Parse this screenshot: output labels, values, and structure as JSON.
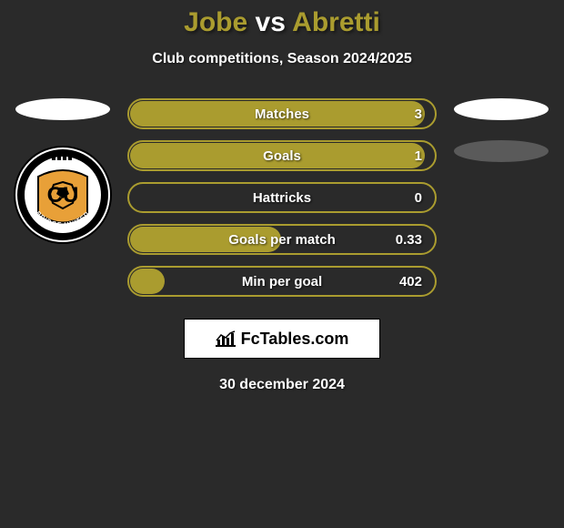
{
  "colors": {
    "accent": "#aa9c2f",
    "bar_fill": "#aa9c2f",
    "bar_border": "#aa9c2f",
    "bg": "#2a2a2a",
    "ellipse_right_2": "#5a5a5a"
  },
  "header": {
    "player1": "Jobe",
    "vs": "vs",
    "player2": "Abretti",
    "subtitle": "Club competitions, Season 2024/2025"
  },
  "stats": [
    {
      "label": "Matches",
      "value": "3",
      "fill_pct": 97
    },
    {
      "label": "Goals",
      "value": "1",
      "fill_pct": 97
    },
    {
      "label": "Hattricks",
      "value": "0",
      "fill_pct": 0
    },
    {
      "label": "Goals per match",
      "value": "0.33",
      "fill_pct": 50
    },
    {
      "label": "Min per goal",
      "value": "402",
      "fill_pct": 12
    }
  ],
  "branding": {
    "site_name": "FcTables.com"
  },
  "date": "30 december 2024",
  "club": {
    "initials": "CU",
    "name": "bridge united",
    "badge_ring": "#000000",
    "badge_inner": "#e8a038",
    "badge_text": "#000000"
  }
}
